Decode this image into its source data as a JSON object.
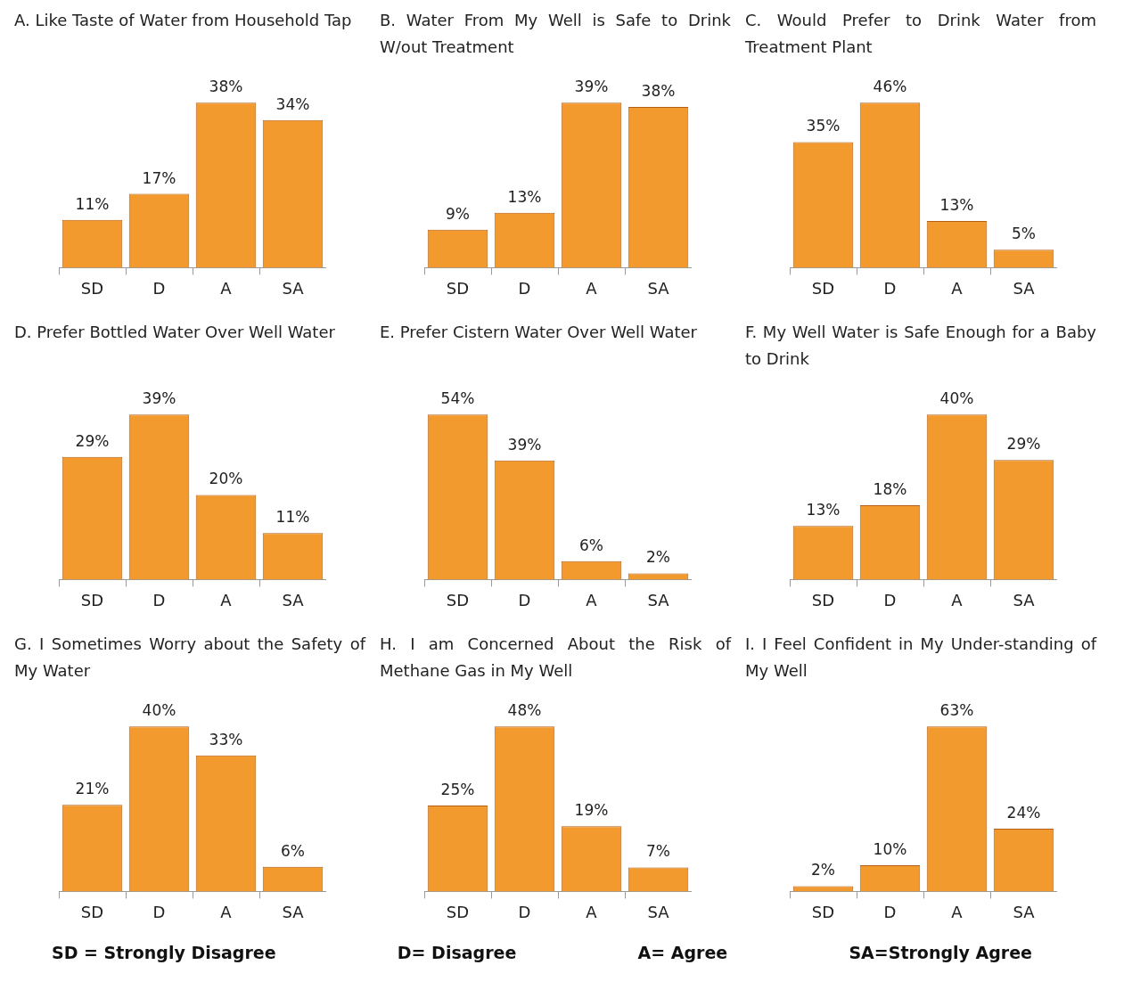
{
  "chart_data": [
    {
      "type": "bar",
      "title": "A. Like Taste of Water from Household Tap",
      "categories": [
        "SD",
        "D",
        "A",
        "SA"
      ],
      "values": [
        11,
        17,
        38,
        34
      ],
      "value_labels": [
        "11%",
        "17%",
        "38%",
        "34%"
      ],
      "color": "#f39a2e"
    },
    {
      "type": "bar",
      "title": "B. Water From My Well is Safe to Drink W/out Treatment",
      "categories": [
        "SD",
        "D",
        "A",
        "SA"
      ],
      "values": [
        9,
        13,
        39,
        38
      ],
      "value_labels": [
        "9%",
        "13%",
        "39%",
        "38%"
      ],
      "color": "#f39a2e"
    },
    {
      "type": "bar",
      "title": "C. Would Prefer to Drink Water from Treatment Plant",
      "categories": [
        "SD",
        "D",
        "A",
        "SA"
      ],
      "values": [
        35,
        46,
        13,
        5
      ],
      "value_labels": [
        "35%",
        "46%",
        "13%",
        "5%"
      ],
      "color": "#f39a2e"
    },
    {
      "type": "bar",
      "title": "D. Prefer Bottled Water Over Well Water",
      "categories": [
        "SD",
        "D",
        "A",
        "SA"
      ],
      "values": [
        29,
        39,
        20,
        11
      ],
      "value_labels": [
        "29%",
        "39%",
        "20%",
        "11%"
      ],
      "color": "#f39a2e"
    },
    {
      "type": "bar",
      "title": "E. Prefer Cistern Water Over Well Water",
      "categories": [
        "SD",
        "D",
        "A",
        "SA"
      ],
      "values": [
        54,
        39,
        6,
        2
      ],
      "value_labels": [
        "54%",
        "39%",
        "6%",
        "2%"
      ],
      "color": "#f39a2e"
    },
    {
      "type": "bar",
      "title": "F. My Well Water is Safe Enough for a Baby to Drink",
      "categories": [
        "SD",
        "D",
        "A",
        "SA"
      ],
      "values": [
        13,
        18,
        40,
        29
      ],
      "value_labels": [
        "13%",
        "18%",
        "40%",
        "29%"
      ],
      "color": "#f39a2e"
    },
    {
      "type": "bar",
      "title": "G. I Sometimes Worry about the Safety of My Water",
      "categories": [
        "SD",
        "D",
        "A",
        "SA"
      ],
      "values": [
        21,
        40,
        33,
        6
      ],
      "value_labels": [
        "21%",
        "40%",
        "33%",
        "6%"
      ],
      "color": "#f39a2e"
    },
    {
      "type": "bar",
      "title": "H. I am Concerned About the Risk of Methane Gas in My Well",
      "categories": [
        "SD",
        "D",
        "A",
        "SA"
      ],
      "values": [
        25,
        48,
        19,
        7
      ],
      "value_labels": [
        "25%",
        "48%",
        "19%",
        "7%"
      ],
      "color": "#f39a2e"
    },
    {
      "type": "bar",
      "title": "I. I Feel Confident in My Under-standing of My Well",
      "categories": [
        "SD",
        "D",
        "A",
        "SA"
      ],
      "values": [
        2,
        10,
        63,
        24
      ],
      "value_labels": [
        "2%",
        "10%",
        "63%",
        "24%"
      ],
      "color": "#f39a2e"
    },
    {
      "type": "other",
      "annotations": [
        "SD = Strongly Disagree",
        "D= Disagree",
        "A= Agree",
        "SA=Strongly Agree"
      ]
    }
  ]
}
